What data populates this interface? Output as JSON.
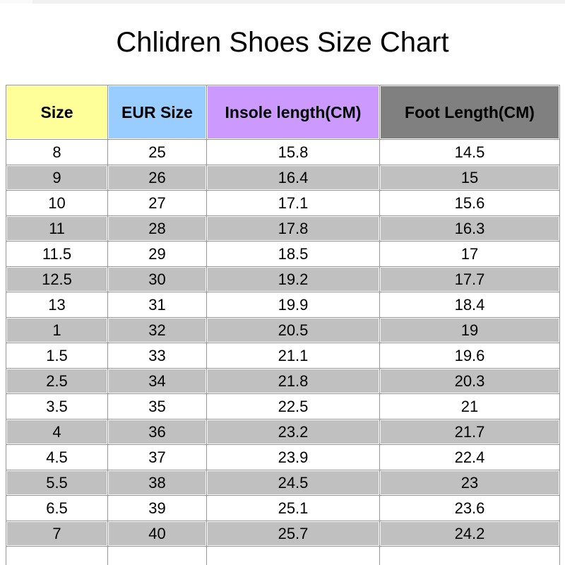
{
  "page": {
    "title": "Chlidren Shoes Size Chart"
  },
  "chart_data": {
    "type": "table",
    "title": "Chlidren Shoes Size Chart",
    "columns": [
      "Size",
      "EUR Size",
      "Insole length(CM)",
      "Foot Length(CM)"
    ],
    "header_colors": [
      "#FFFF99",
      "#99CCFF",
      "#CC99FF",
      "#808080"
    ],
    "rows": [
      [
        "8",
        "25",
        "15.8",
        "14.5"
      ],
      [
        "9",
        "26",
        "16.4",
        "15"
      ],
      [
        "10",
        "27",
        "17.1",
        "15.6"
      ],
      [
        "11",
        "28",
        "17.8",
        "16.3"
      ],
      [
        "11.5",
        "29",
        "18.5",
        "17"
      ],
      [
        "12.5",
        "30",
        "19.2",
        "17.7"
      ],
      [
        "13",
        "31",
        "19.9",
        "18.4"
      ],
      [
        "1",
        "32",
        "20.5",
        "19"
      ],
      [
        "1.5",
        "33",
        "21.1",
        "19.6"
      ],
      [
        "2.5",
        "34",
        "21.8",
        "20.3"
      ],
      [
        "3.5",
        "35",
        "22.5",
        "21"
      ],
      [
        "4",
        "36",
        "23.2",
        "21.7"
      ],
      [
        "4.5",
        "37",
        "23.9",
        "22.4"
      ],
      [
        "5.5",
        "38",
        "24.5",
        "23"
      ],
      [
        "6.5",
        "39",
        "25.1",
        "23.6"
      ],
      [
        "7",
        "40",
        "25.7",
        "24.2"
      ]
    ],
    "trailing_empty_row": true,
    "row_stripe_colors": [
      "#FFFFFF",
      "#C0C0C0"
    ],
    "grid_color": "#979797",
    "layout_hints": {
      "header_text_color": "#000000",
      "body_text_color": "#000000",
      "striping": "odd rows white, even rows silver"
    }
  }
}
